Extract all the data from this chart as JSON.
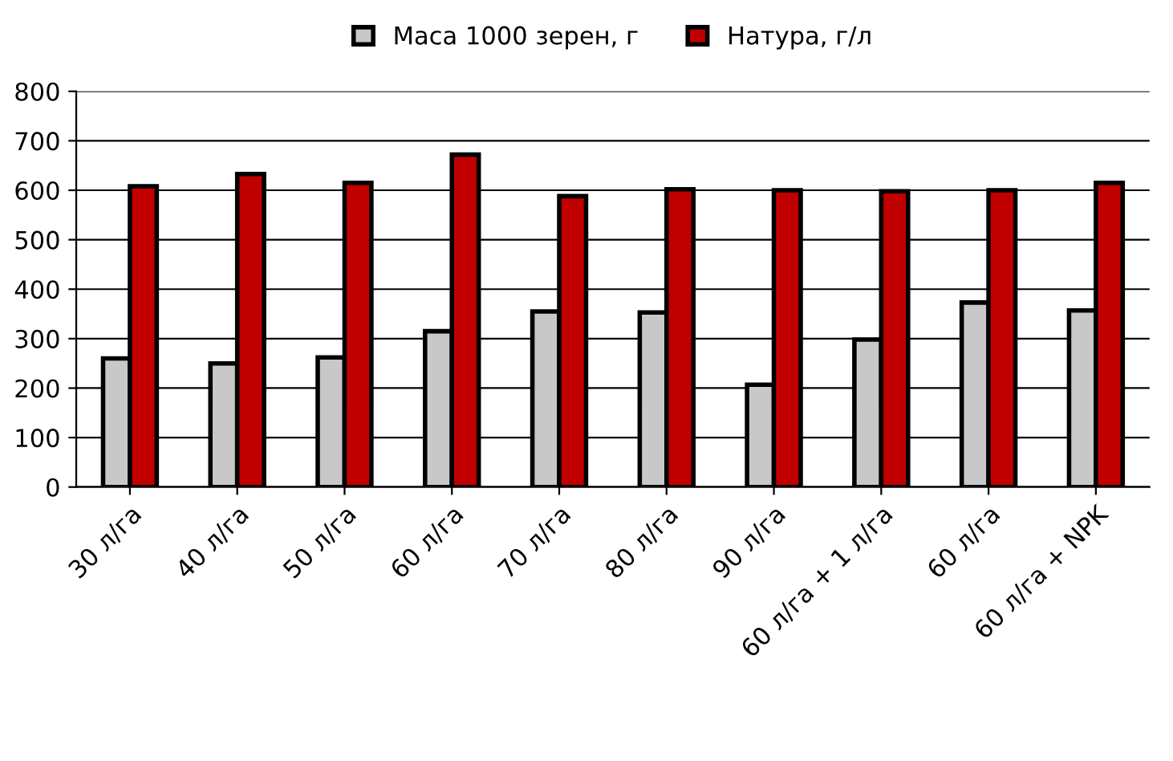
{
  "chart_data": {
    "type": "bar",
    "categories": [
      "30 л/га",
      "40 л/га",
      "50 л/га",
      "60 л/га",
      "70 л/га",
      "80 л/га",
      "90 л/га",
      "60 л/га + 1 л/га",
      "60 л/га",
      "60 л/га + NPK"
    ],
    "series": [
      {
        "name": "Маса 1000 зерен, г",
        "color": "#c8c8c8",
        "values": [
          260,
          250,
          262,
          315,
          355,
          353,
          207,
          298,
          373,
          357
        ]
      },
      {
        "name": "Натура, г/л",
        "color": "#c00000",
        "values": [
          608,
          633,
          615,
          672,
          588,
          602,
          600,
          598,
          600,
          615
        ]
      }
    ],
    "ylim": [
      0,
      800
    ],
    "yticks": [
      0,
      100,
      200,
      300,
      400,
      500,
      600,
      700,
      800
    ],
    "grid": "y",
    "legend": "top"
  }
}
